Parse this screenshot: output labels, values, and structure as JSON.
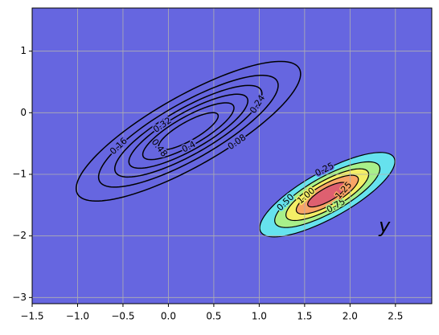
{
  "chart_data": {
    "type": "contour",
    "xlim": [
      -1.5,
      2.9
    ],
    "ylim": [
      -3.1,
      1.7
    ],
    "xticks": [
      {
        "value": -1.5,
        "label": "−1.5"
      },
      {
        "value": -1.0,
        "label": "−1.0"
      },
      {
        "value": -0.5,
        "label": "−0.5"
      },
      {
        "value": 0,
        "label": "0.0"
      },
      0.5,
      {
        "value": 1,
        "label": "1.0"
      },
      1.5,
      {
        "value": 2,
        "label": "2.0"
      },
      2.5
    ],
    "yticks": [
      {
        "value": -3,
        "label": "−3"
      },
      {
        "value": -2,
        "label": "−2"
      },
      {
        "value": -1,
        "label": "−1"
      },
      0,
      1
    ],
    "grid": true,
    "background": "#6666e0",
    "annotation": "y",
    "contours": [
      {
        "style": "lines",
        "color": "#000000",
        "center": [
          0.22,
          -0.3
        ],
        "sigma": [
          0.815,
          0.255
        ],
        "angle": 42,
        "peak": 0.55,
        "levels": [
          0.08,
          0.16,
          0.24,
          0.32,
          0.4,
          0.48
        ]
      },
      {
        "style": "filled",
        "color": "#000000",
        "center": [
          1.75,
          -1.33
        ],
        "sigma": [
          0.51,
          0.176
        ],
        "angle": 42,
        "peak": 1.45,
        "levels": [
          0.25,
          0.5,
          0.75,
          1.0,
          1.25
        ],
        "value_labels": [
          "0.25",
          "0.50",
          "0.75",
          "1.00",
          "1.25"
        ],
        "colors": [
          "#66e2ee",
          "#a8f08a",
          "#f4ee66",
          "#f8a466",
          "#de6070"
        ]
      }
    ]
  }
}
